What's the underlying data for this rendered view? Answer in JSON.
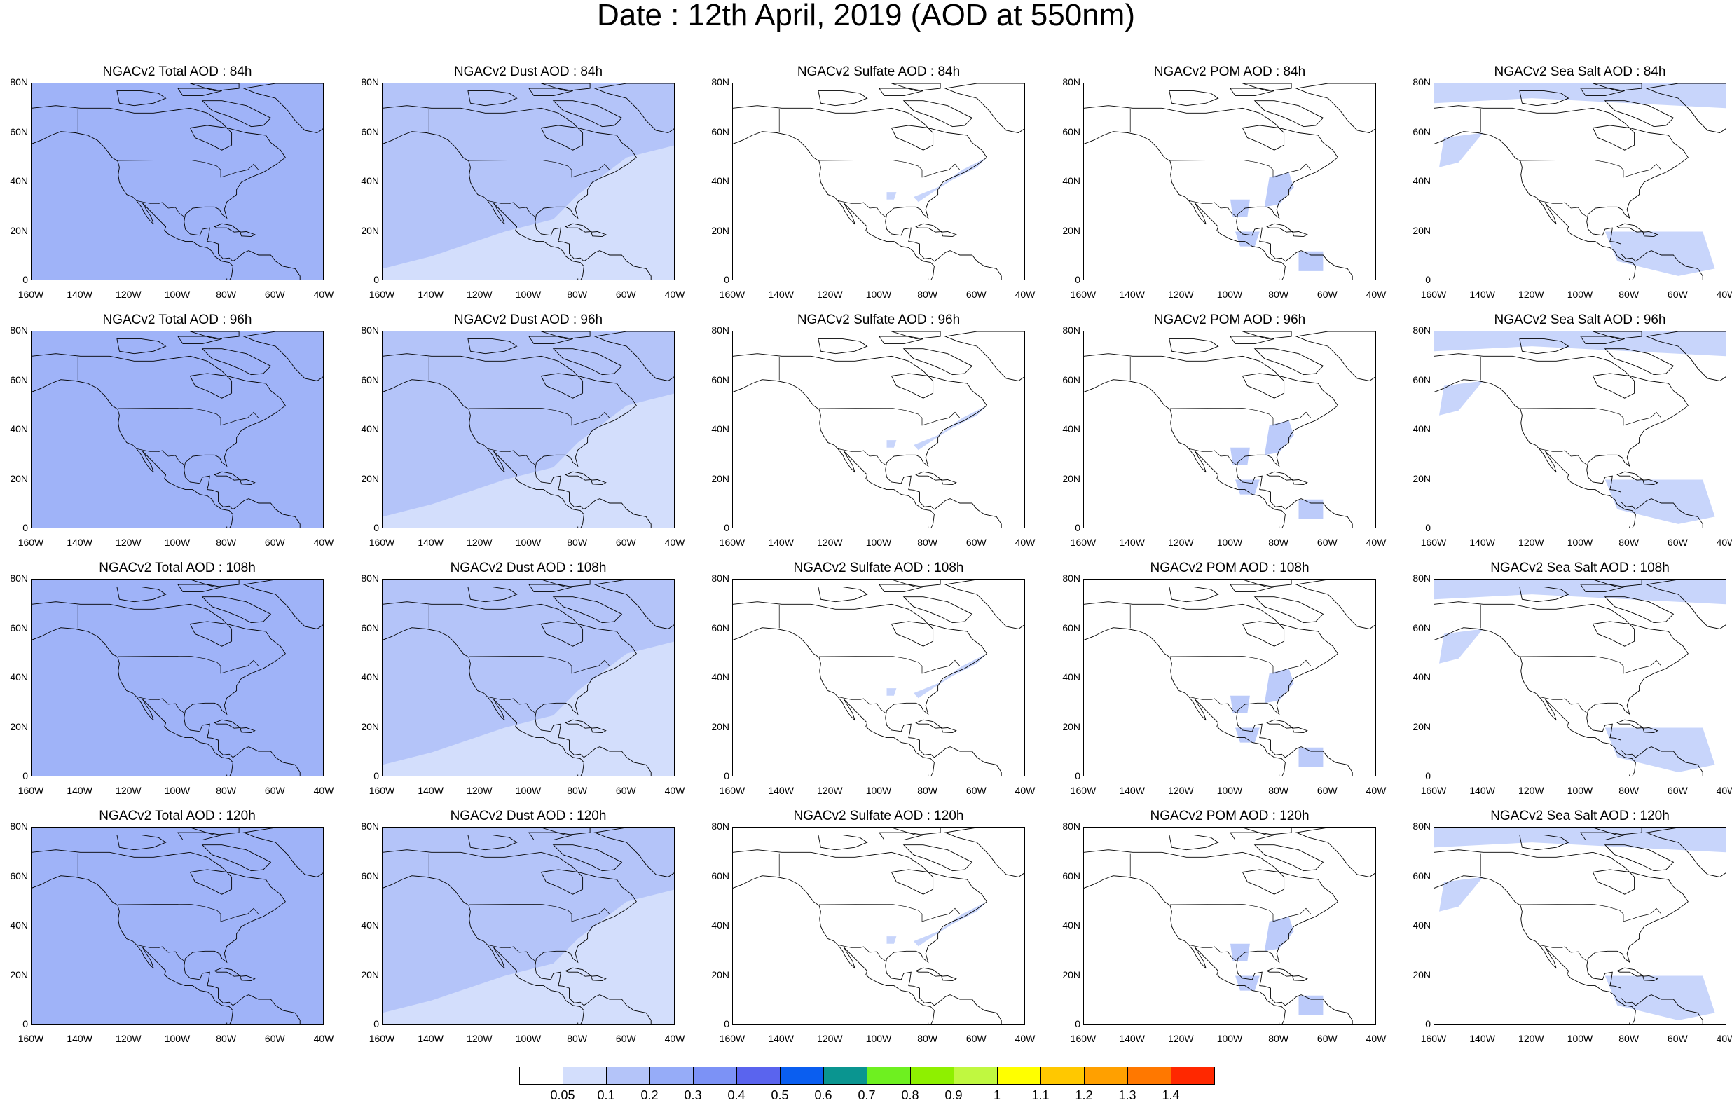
{
  "title": "Date : 12th April, 2019 (AOD at 550nm)",
  "columns": [
    {
      "key": "total",
      "titles": [
        "NGACv2 Total AOD : 84h",
        "NGACv2 Total AOD : 96h",
        "NGACv2 Total AOD : 108h",
        "NGACv2 Total AOD : 120h"
      ],
      "bg": "#c8d6fb",
      "blobs": "#9fb3f8"
    },
    {
      "key": "dust",
      "titles": [
        "NGACv2 Dust AOD : 84h",
        "NGACv2 Dust AOD : 96h",
        "NGACv2 Dust AOD : 108h",
        "NGACv2 Dust AOD : 120h"
      ],
      "bg": "#d3defc",
      "blobs": "#b4c4f9"
    },
    {
      "key": "sulfate",
      "titles": [
        "NGACv2 Sulfate AOD : 84h",
        "NGACv2 Sulfate AOD : 96h",
        "NGACv2 Sulfate AOD : 108h",
        "NGACv2 Sulfate AOD : 120h"
      ],
      "bg": "#ffffff",
      "blobs": "#c8d5fb"
    },
    {
      "key": "pom",
      "titles": [
        "NGACv2 POM AOD : 84h",
        "NGACv2 POM AOD : 96h",
        "NGACv2 POM AOD : 108h",
        "NGACv2 POM AOD : 120h"
      ],
      "bg": "#ffffff",
      "blobs": "#bccbfa"
    },
    {
      "key": "seasalt",
      "titles": [
        "NGACv2 Sea Salt AOD : 84h",
        "NGACv2 Sea Salt AOD : 96h",
        "NGACv2 Sea Salt AOD : 108h",
        "NGACv2 Sea Salt  AOD : 120h"
      ],
      "bg": "#ffffff",
      "blobs": "#c8d5fb"
    }
  ],
  "y_ticks": [
    "80N",
    "60N",
    "40N",
    "20N",
    "0"
  ],
  "x_ticks": [
    "160W",
    "140W",
    "120W",
    "100W",
    "80W",
    "60W",
    "40W"
  ],
  "x_ticks_alt": [
    "160W",
    "140W",
    "120W",
    "100W",
    "80W",
    "60W",
    "40W"
  ],
  "colorbar": {
    "colors": [
      "#ffffff",
      "#d3defc",
      "#b4c4f9",
      "#96acf8",
      "#7c92f6",
      "#5a64ee",
      "#0a5ef0",
      "#0a9590",
      "#6ef020",
      "#8ef000",
      "#c0f840",
      "#ffff00",
      "#ffc800",
      "#ffa000",
      "#ff7800",
      "#ff2800"
    ],
    "labels": [
      "0.05",
      "0.1",
      "0.2",
      "0.3",
      "0.4",
      "0.5",
      "0.6",
      "0.7",
      "0.8",
      "0.9",
      "1",
      "1.1",
      "1.2",
      "1.3",
      "1.4"
    ]
  }
}
